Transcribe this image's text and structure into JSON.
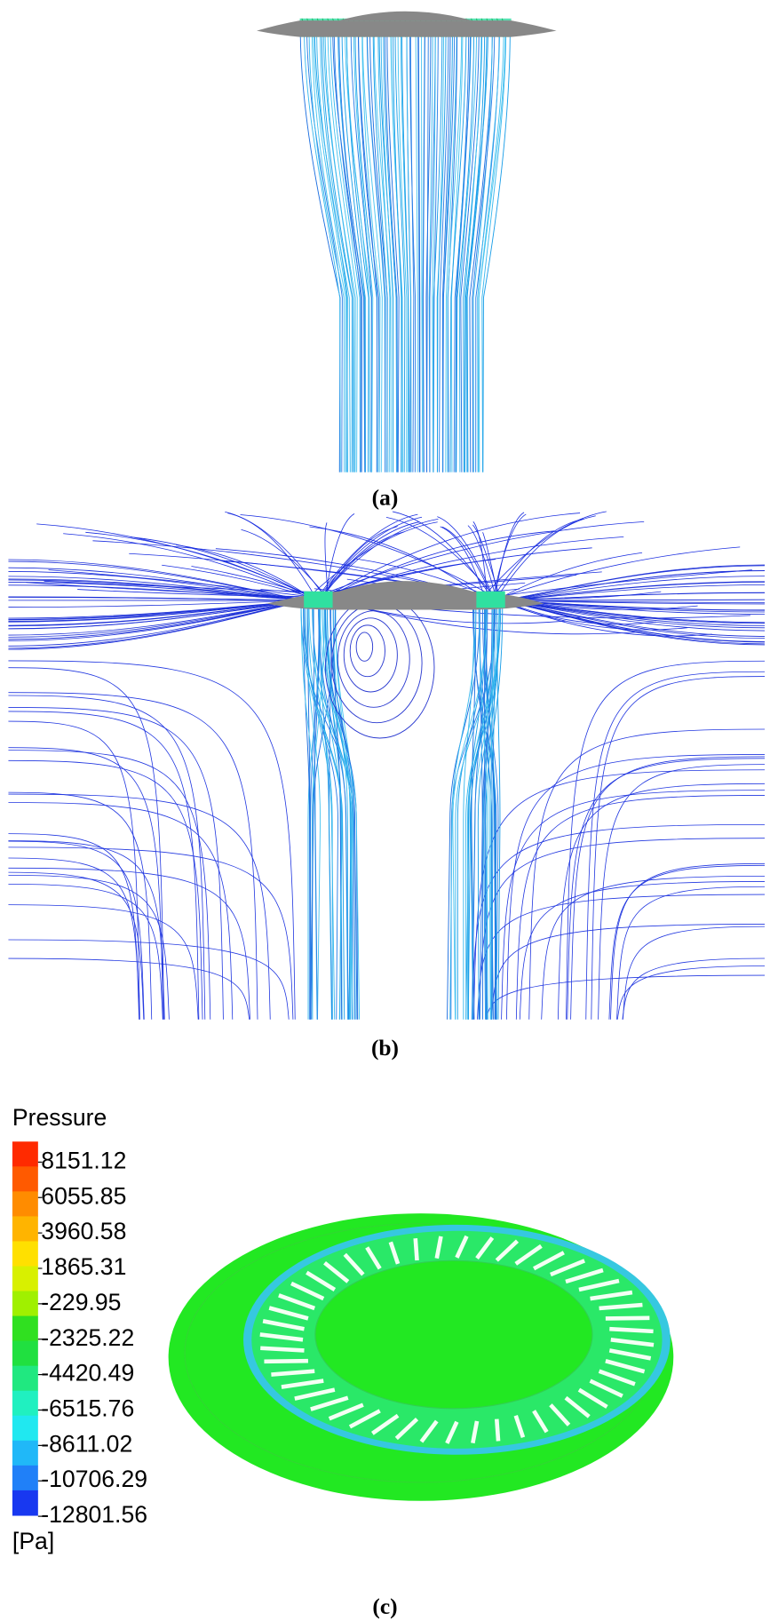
{
  "panels": [
    {
      "label": "(a)"
    },
    {
      "label": "(b)"
    },
    {
      "label": "(c)",
      "colorbar": {
        "title": "Pressure",
        "unit": "[Pa]",
        "ticks": [
          8151.12,
          6055.85,
          3960.58,
          1865.31,
          -229.95,
          -2325.22,
          -4420.49,
          -6515.76,
          -8611.02,
          -10706.29,
          -12801.56
        ],
        "colors": [
          "#ff2a00",
          "#ff5a00",
          "#ff8c00",
          "#ffb400",
          "#ffe000",
          "#d8f000",
          "#a0f000",
          "#30e020",
          "#20e040",
          "#20e880",
          "#20f0c0",
          "#20e8f0",
          "#20b8f8",
          "#2080f8",
          "#1838f0"
        ]
      }
    }
  ]
}
